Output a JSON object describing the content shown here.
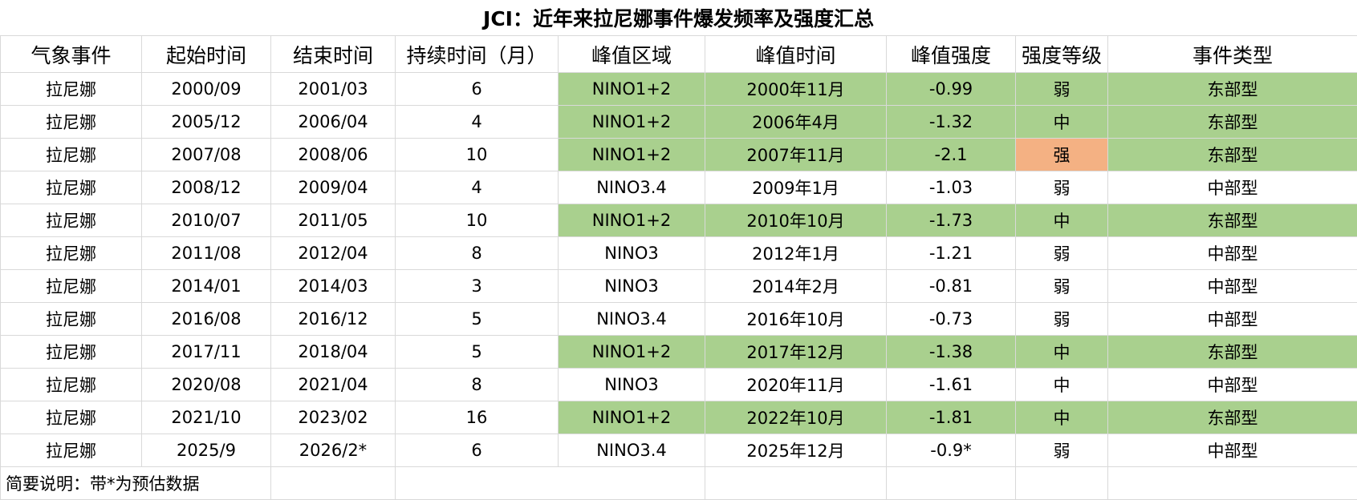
{
  "title": "JCI：近年来拉尼娜事件爆发频率及强度汇总",
  "headers": [
    "气象事件",
    "起始时间",
    "结束时间",
    "持续时间（月）",
    "峰值区域",
    "峰值时间",
    "峰值强度",
    "强度等级",
    "事件类型"
  ],
  "rows": [
    {
      "cells": [
        "拉尼娜",
        "2000/09",
        "2001/03",
        "6",
        "NINO1+2",
        "2000年11月",
        "-0.99",
        "弱",
        "东部型"
      ],
      "hl": "green",
      "strong": false
    },
    {
      "cells": [
        "拉尼娜",
        "2005/12",
        "2006/04",
        "4",
        "NINO1+2",
        "2006年4月",
        "-1.32",
        "中",
        "东部型"
      ],
      "hl": "green",
      "strong": false
    },
    {
      "cells": [
        "拉尼娜",
        "2007/08",
        "2008/06",
        "10",
        "NINO1+2",
        "2007年11月",
        "-2.1",
        "强",
        "东部型"
      ],
      "hl": "green",
      "strong": true
    },
    {
      "cells": [
        "拉尼娜",
        "2008/12",
        "2009/04",
        "4",
        "NINO3.4",
        "2009年1月",
        "-1.03",
        "弱",
        "中部型"
      ],
      "hl": "none",
      "strong": false
    },
    {
      "cells": [
        "拉尼娜",
        "2010/07",
        "2011/05",
        "10",
        "NINO1+2",
        "2010年10月",
        "-1.73",
        "中",
        "东部型"
      ],
      "hl": "green",
      "strong": false
    },
    {
      "cells": [
        "拉尼娜",
        "2011/08",
        "2012/04",
        "8",
        "NINO3",
        "2012年1月",
        "-1.21",
        "弱",
        "中部型"
      ],
      "hl": "none",
      "strong": false
    },
    {
      "cells": [
        "拉尼娜",
        "2014/01",
        "2014/03",
        "3",
        "NINO3",
        "2014年2月",
        "-0.81",
        "弱",
        "中部型"
      ],
      "hl": "none",
      "strong": false
    },
    {
      "cells": [
        "拉尼娜",
        "2016/08",
        "2016/12",
        "5",
        "NINO3.4",
        "2016年10月",
        "-0.73",
        "弱",
        "中部型"
      ],
      "hl": "none",
      "strong": false
    },
    {
      "cells": [
        "拉尼娜",
        "2017/11",
        "2018/04",
        "5",
        "NINO1+2",
        "2017年12月",
        "-1.38",
        "中",
        "东部型"
      ],
      "hl": "green",
      "strong": false
    },
    {
      "cells": [
        "拉尼娜",
        "2020/08",
        "2021/04",
        "8",
        "NINO3",
        "2020年11月",
        "-1.61",
        "中",
        "中部型"
      ],
      "hl": "none",
      "strong": false
    },
    {
      "cells": [
        "拉尼娜",
        "2021/10",
        "2023/02",
        "16",
        "NINO1+2",
        "2022年10月",
        "-1.81",
        "中",
        "东部型"
      ],
      "hl": "green",
      "strong": false
    },
    {
      "cells": [
        "拉尼娜",
        "2025/9",
        "2026/2*",
        "6",
        "NINO3.4",
        "2025年12月",
        "-0.9*",
        "弱",
        "中部型"
      ],
      "hl": "none",
      "strong": false
    }
  ],
  "note": "简要说明：带*为预估数据",
  "colors": {
    "highlight_green": "#a9d08e",
    "highlight_orange": "#f4b183",
    "grid_line": "#d9d9d9"
  }
}
